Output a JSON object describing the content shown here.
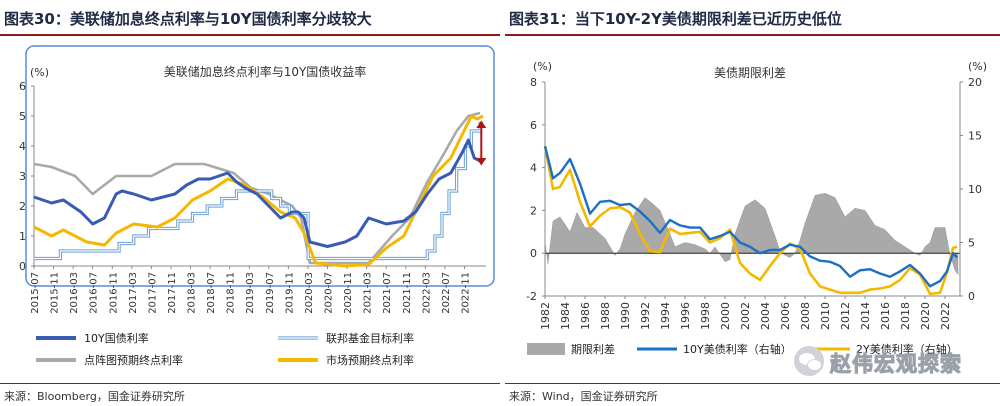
{
  "left": {
    "figure_title": "图表30：美联储加息终点利率与10Y国债利率分歧较大",
    "source": "来源：Bloomberg，国金证券研究所"
  },
  "right": {
    "figure_title": "图表31：当下10Y-2Y美债期限利差已近历史低位",
    "source": "来源：Wind，国金证券研究所"
  },
  "watermark": {
    "text": "赵伟宏观探索"
  },
  "colors": {
    "blue_dark": "#3a5bb5",
    "blue_light": "#93c2ea",
    "gray": "#a9a9a9",
    "gold": "#f5b800",
    "arrow_red": "#b11212",
    "frame": "#5a8ad8",
    "rule": "#8b1c1c"
  },
  "chart_data": [
    {
      "type": "line",
      "title": "美联储加息终点利率与10Y国债收益率",
      "unit": "(%)",
      "ylim": [
        0,
        6
      ],
      "yticks": [
        "0",
        "1",
        "2",
        "3",
        "4",
        "5",
        "6"
      ],
      "x_tick_labels": [
        "2015-07",
        "2015-11",
        "2016-03",
        "2016-07",
        "2016-11",
        "2017-03",
        "2017-07",
        "2017-11",
        "2018-03",
        "2018-07",
        "2018-11",
        "2019-03",
        "2019-07",
        "2019-11",
        "2020-03",
        "2020-07",
        "2020-11",
        "2021-03",
        "2021-07",
        "2021-11",
        "2022-03",
        "2022-07",
        "2022-11"
      ],
      "x_start": 2015.5,
      "x_end": 2023.2,
      "grid": false,
      "legend_position": "bottom",
      "annotation": "red double-headed arrow between 3.5 and 4.8 near 2023",
      "series": [
        {
          "name": "10Y国债利率",
          "color": "#3a5bb5",
          "x": [
            2015.5,
            2015.8,
            2016.0,
            2016.3,
            2016.5,
            2016.7,
            2016.9,
            2017.0,
            2017.2,
            2017.5,
            2017.7,
            2017.9,
            2018.1,
            2018.3,
            2018.5,
            2018.8,
            2018.95,
            2019.1,
            2019.3,
            2019.5,
            2019.7,
            2019.9,
            2020.0,
            2020.1,
            2020.2,
            2020.5,
            2020.8,
            2021.0,
            2021.2,
            2021.5,
            2021.8,
            2022.0,
            2022.2,
            2022.4,
            2022.6,
            2022.8,
            2022.9,
            2023.0,
            2023.1
          ],
          "y": [
            2.3,
            2.1,
            2.2,
            1.8,
            1.4,
            1.6,
            2.4,
            2.5,
            2.4,
            2.2,
            2.3,
            2.4,
            2.7,
            2.9,
            2.9,
            3.1,
            2.8,
            2.6,
            2.4,
            2.0,
            1.6,
            1.8,
            1.8,
            1.6,
            0.8,
            0.65,
            0.8,
            1.0,
            1.6,
            1.4,
            1.5,
            1.8,
            2.4,
            2.9,
            3.1,
            3.8,
            4.2,
            3.6,
            3.5
          ]
        },
        {
          "name": "联邦基金目标利率",
          "color": "#93c2ea",
          "x": [
            2015.5,
            2015.95,
            2016.95,
            2017.2,
            2017.45,
            2017.95,
            2018.2,
            2018.45,
            2018.7,
            2018.95,
            2019.55,
            2019.7,
            2019.85,
            2020.17,
            2022.2,
            2022.33,
            2022.45,
            2022.57,
            2022.7,
            2022.85,
            2022.95,
            2023.1
          ],
          "y": [
            0.25,
            0.5,
            0.75,
            1.0,
            1.25,
            1.5,
            1.75,
            2.0,
            2.25,
            2.5,
            2.25,
            2.0,
            1.75,
            0.25,
            0.5,
            1.0,
            1.75,
            2.5,
            3.25,
            4.0,
            4.5,
            4.75
          ]
        },
        {
          "name": "点阵图预期终点利率",
          "color": "#a9a9a9",
          "x": [
            2015.5,
            2015.8,
            2016.2,
            2016.5,
            2016.9,
            2017.5,
            2017.9,
            2018.4,
            2018.9,
            2019.2,
            2019.5,
            2019.9,
            2020.05,
            2020.2,
            2020.7,
            2021.2,
            2021.6,
            2021.9,
            2022.2,
            2022.5,
            2022.7,
            2022.9,
            2023.1
          ],
          "y": [
            3.4,
            3.3,
            3.0,
            2.4,
            3.0,
            3.0,
            3.4,
            3.4,
            3.1,
            2.6,
            2.4,
            2.0,
            1.6,
            0.1,
            0.1,
            0.1,
            1.0,
            1.6,
            2.8,
            3.8,
            4.5,
            5.0,
            5.1
          ]
        },
        {
          "name": "市场预期终点利率",
          "color": "#f5b800",
          "x": [
            2015.5,
            2015.8,
            2016.0,
            2016.4,
            2016.7,
            2016.9,
            2017.2,
            2017.6,
            2017.9,
            2018.2,
            2018.5,
            2018.8,
            2019.1,
            2019.4,
            2019.7,
            2019.95,
            2020.1,
            2020.3,
            2020.8,
            2021.2,
            2021.5,
            2021.8,
            2022.0,
            2022.3,
            2022.6,
            2022.8,
            2022.95,
            2023.05,
            2023.15
          ],
          "y": [
            1.3,
            1.0,
            1.2,
            0.8,
            0.7,
            1.1,
            1.4,
            1.3,
            1.6,
            2.2,
            2.5,
            2.9,
            2.7,
            2.3,
            1.8,
            1.6,
            1.1,
            0.1,
            0.0,
            0.05,
            0.6,
            1.0,
            1.8,
            3.0,
            3.6,
            4.4,
            5.0,
            4.9,
            5.0
          ]
        }
      ]
    },
    {
      "type": "line",
      "title": "美债期限利差",
      "unit_left": "(%)",
      "unit_right": "(%)",
      "ylim_left": [
        -2,
        8
      ],
      "yticks_left": [
        "-2",
        "0",
        "2",
        "4",
        "6",
        "8"
      ],
      "ylim_right": [
        0,
        20
      ],
      "yticks_right": [
        "0",
        "5",
        "10",
        "15",
        "20"
      ],
      "x_tick_labels": [
        "1982",
        "1984",
        "1986",
        "1988",
        "1990",
        "1992",
        "1994",
        "1996",
        "1998",
        "2000",
        "2002",
        "2004",
        "2006",
        "2008",
        "2010",
        "2012",
        "2014",
        "2016",
        "2018",
        "2020",
        "2022"
      ],
      "x_start": 1982,
      "x_end": 2023.5,
      "grid": false,
      "legend_position": "bottom",
      "series": [
        {
          "name": "期限利差",
          "color": "#a9a9a9",
          "type": "area",
          "axis": "left",
          "x": [
            1982,
            1982.3,
            1982.8,
            1983.5,
            1984.5,
            1985.2,
            1986,
            1986.8,
            1988,
            1989,
            1989.5,
            1990,
            1991,
            1992,
            1992.8,
            1993.5,
            1994.5,
            1995,
            1996,
            1997,
            1998,
            1998.5,
            1999,
            2000,
            2000.5,
            2001,
            2002,
            2003,
            2004,
            2005,
            2005.5,
            2006,
            2006.5,
            2007,
            2007.5,
            2008,
            2009,
            2010,
            2011,
            2012,
            2013,
            2014,
            2015,
            2016,
            2017,
            2018,
            2019,
            2019.5,
            2020,
            2020.5,
            2021,
            2022,
            2022.5,
            2022.8,
            2023,
            2023.3
          ],
          "y": [
            0.5,
            -0.5,
            1.5,
            1.7,
            1.0,
            1.9,
            1.2,
            1.2,
            0.7,
            -0.1,
            0.2,
            0.9,
            1.9,
            2.6,
            2.3,
            2.0,
            0.9,
            0.3,
            0.5,
            0.4,
            0.2,
            0.0,
            0.3,
            -0.4,
            -0.3,
            0.9,
            2.2,
            2.5,
            2.1,
            0.8,
            0.1,
            -0.1,
            -0.2,
            0.0,
            0.6,
            1.4,
            2.7,
            2.8,
            2.6,
            1.7,
            2.1,
            2.0,
            1.3,
            1.1,
            0.6,
            0.3,
            0.0,
            -0.1,
            0.3,
            0.5,
            1.2,
            1.2,
            -0.1,
            -0.5,
            -0.8,
            -1.0
          ]
        },
        {
          "name": "10Y美债利率（右轴）",
          "color": "#1c6fc4",
          "axis": "right",
          "x": [
            1982,
            1982.8,
            1983.5,
            1984.5,
            1985.5,
            1986.5,
            1987.5,
            1988.5,
            1989.5,
            1990.5,
            1991.5,
            1992.5,
            1993.5,
            1994.5,
            1995.5,
            1996.5,
            1997.5,
            1998.5,
            1999.5,
            2000.5,
            2001.5,
            2002.5,
            2003.5,
            2004.5,
            2005.5,
            2006.5,
            2007.5,
            2008.5,
            2009.5,
            2010.5,
            2011.5,
            2012.5,
            2013.5,
            2014.5,
            2015.5,
            2016.5,
            2017.5,
            2018.5,
            2019.5,
            2020.5,
            2021.5,
            2022.2,
            2022.8,
            2023.2
          ],
          "y": [
            14.0,
            11.0,
            11.5,
            12.8,
            10.5,
            7.7,
            8.8,
            8.9,
            8.5,
            8.6,
            7.9,
            7.0,
            5.9,
            7.1,
            6.6,
            6.4,
            6.4,
            5.3,
            5.6,
            6.0,
            5.0,
            4.6,
            4.0,
            4.3,
            4.3,
            4.8,
            4.6,
            3.7,
            3.3,
            3.2,
            2.8,
            1.8,
            2.4,
            2.5,
            2.1,
            1.8,
            2.3,
            2.9,
            2.1,
            0.9,
            1.4,
            2.3,
            4.0,
            3.6
          ]
        },
        {
          "name": "2Y美债利率（右轴）",
          "color": "#f5b800",
          "axis": "right",
          "x": [
            1982,
            1982.8,
            1983.5,
            1984.5,
            1985.5,
            1986.5,
            1987.5,
            1988.5,
            1989.5,
            1990.5,
            1991.5,
            1992.5,
            1993.5,
            1994.5,
            1995.5,
            1996.5,
            1997.5,
            1998.5,
            1999.5,
            2000.5,
            2001.5,
            2002.5,
            2003.5,
            2004.5,
            2005.5,
            2006.5,
            2007.5,
            2008.5,
            2009.5,
            2010.5,
            2011.5,
            2012.5,
            2013.5,
            2014.5,
            2015.5,
            2016.5,
            2017.5,
            2018.5,
            2019.5,
            2020.5,
            2021.5,
            2022.2,
            2022.8,
            2023.2
          ],
          "y": [
            14.0,
            10.0,
            10.2,
            11.8,
            8.8,
            6.5,
            7.5,
            8.2,
            8.3,
            7.8,
            5.8,
            4.2,
            4.1,
            6.3,
            5.8,
            5.9,
            6.0,
            5.0,
            5.4,
            6.2,
            3.1,
            2.1,
            1.5,
            2.8,
            4.0,
            4.9,
            4.4,
            2.1,
            0.9,
            0.6,
            0.3,
            0.3,
            0.3,
            0.6,
            0.7,
            0.9,
            1.5,
            2.6,
            2.0,
            0.2,
            0.3,
            2.2,
            4.5,
            4.6
          ]
        }
      ]
    }
  ]
}
